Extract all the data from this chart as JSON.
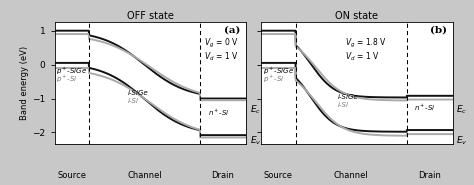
{
  "title_a": "OFF state",
  "title_b": "ON state",
  "label_a": "(a)",
  "label_b": "(b)",
  "ylabel": "Band energy (eV)",
  "ylim": [
    -2.35,
    1.25
  ],
  "yticks": [
    -2,
    -1,
    0,
    1
  ],
  "color_sige": "#111111",
  "color_si": "#aaaaaa",
  "lw_thick": 1.4,
  "lw_thin": 1.0,
  "src_boundary": 0.18,
  "drn_boundary": 0.76,
  "fig_bg": "#c8c8c8"
}
